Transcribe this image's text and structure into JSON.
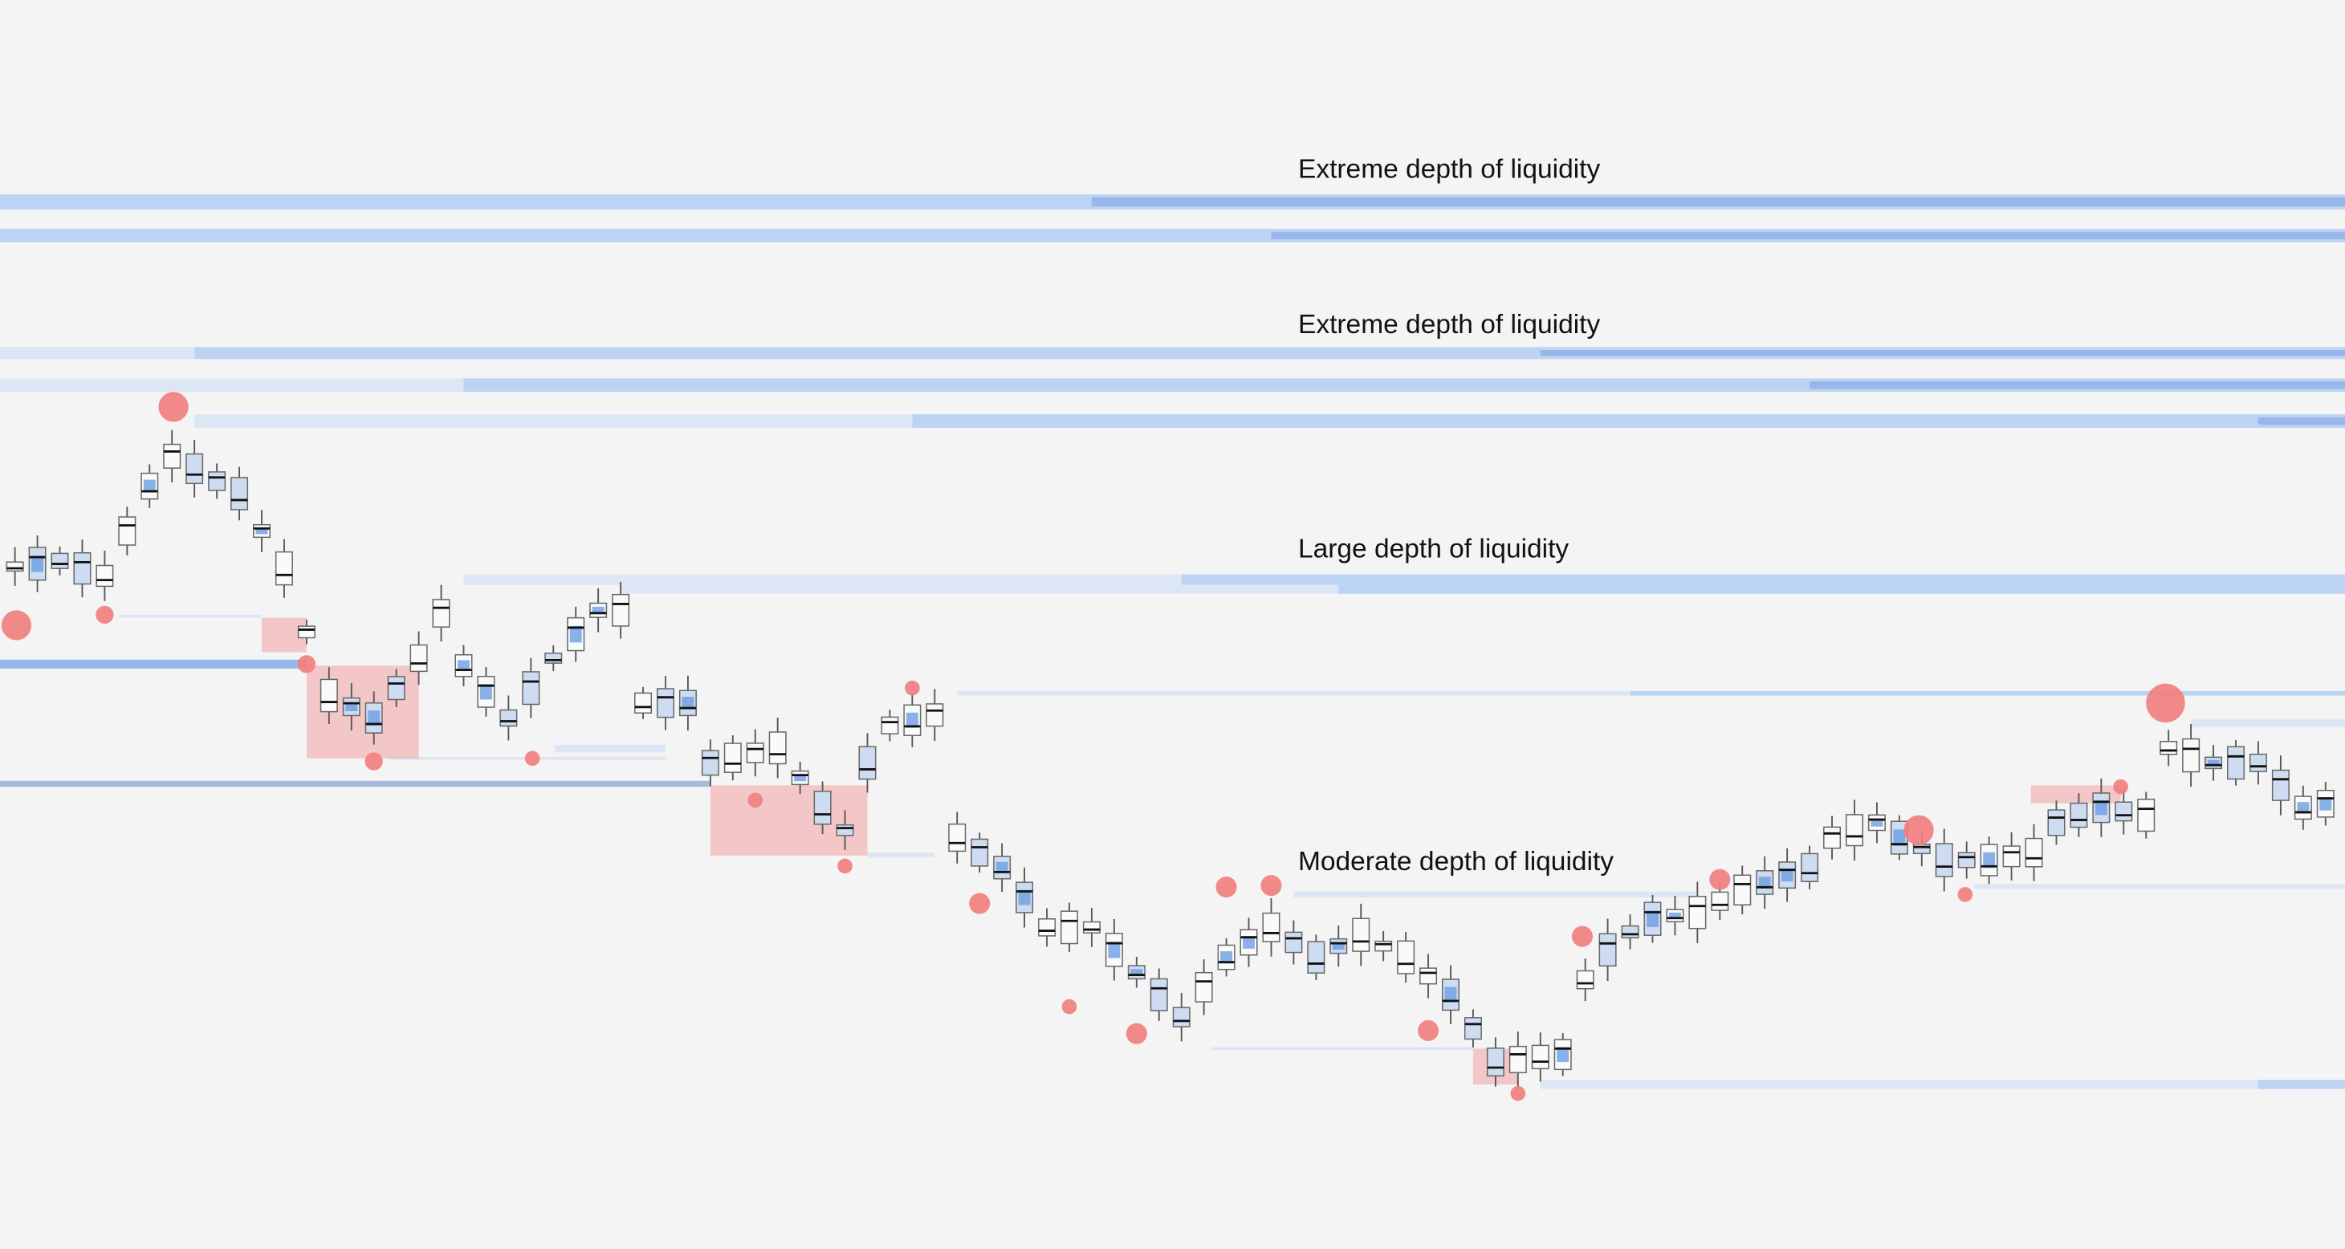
{
  "chart_data": {
    "type": "candlestick",
    "annotations": [
      "Extreme depth of liquidity",
      "Extreme depth of liquidity",
      "Large depth of liquidity",
      "Moderate depth of liquidity"
    ]
  }
}
